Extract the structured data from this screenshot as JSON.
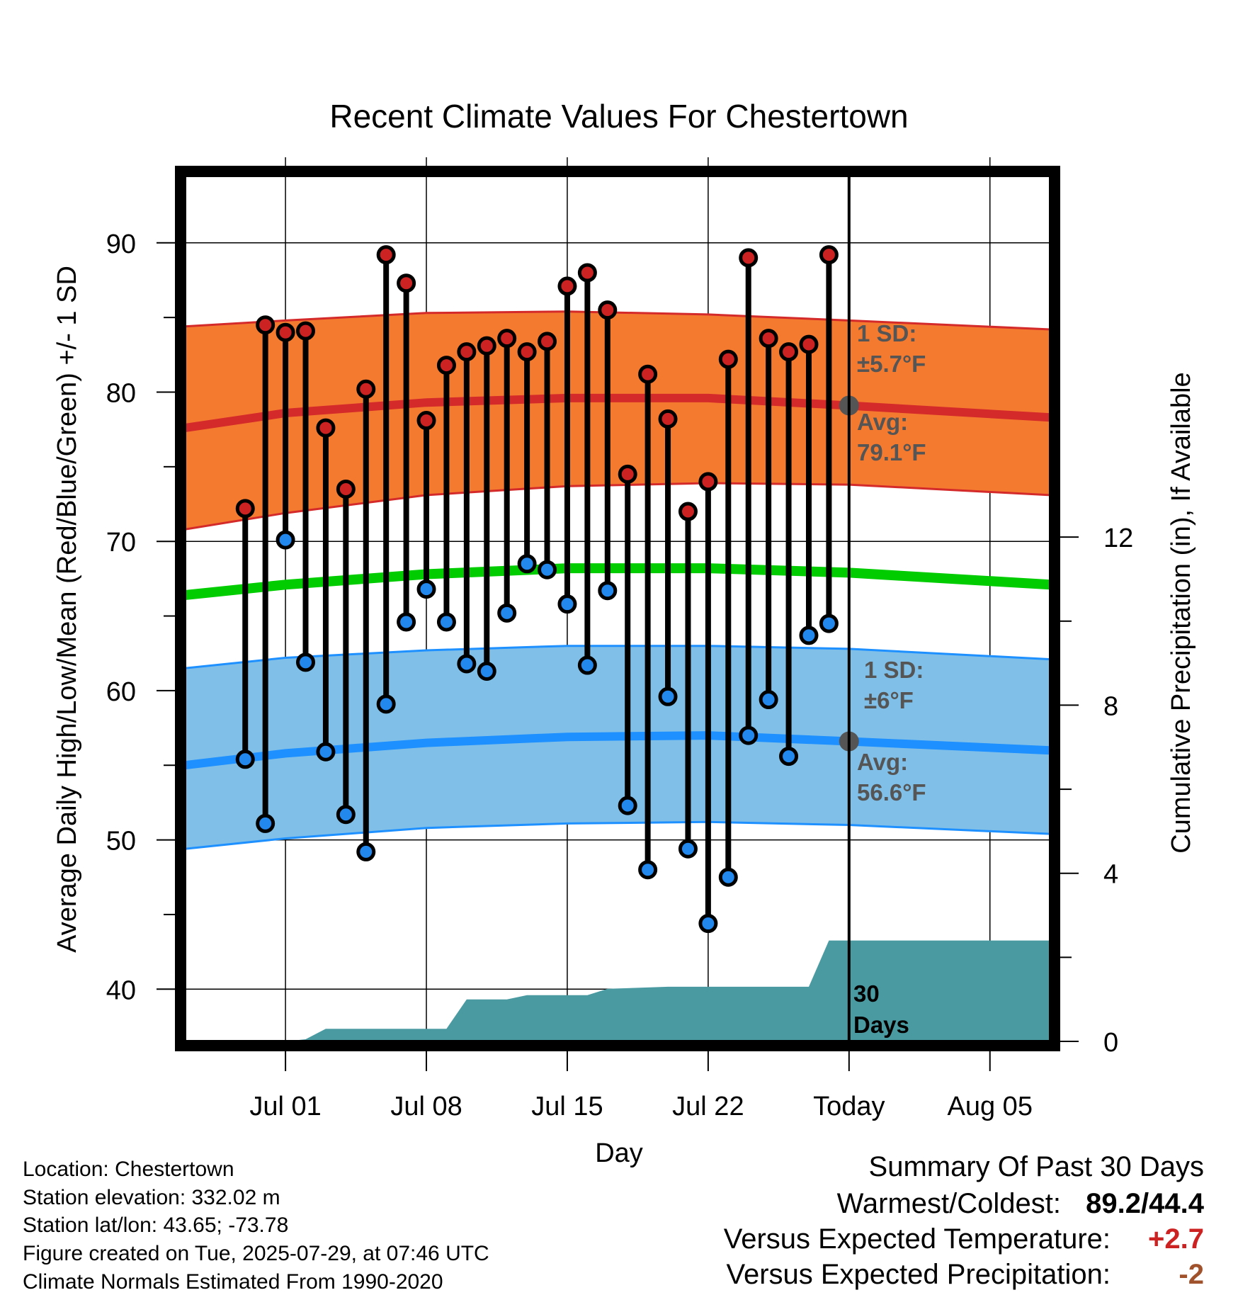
{
  "chart_data": {
    "type": "line",
    "title": "Recent Climate Values For Chestertown",
    "xlabel": "Day",
    "ylabel": "Average Daily High/Low/Mean (Red/Blue/Green) +/- 1 SD",
    "y2label": "Cumulative Precipitation (in), If Available",
    "ylim": [
      36.5,
      94.5
    ],
    "y2lim": [
      0,
      20.6
    ],
    "xlim": [
      "2025-06-26",
      "2025-08-08"
    ],
    "xticks": [
      {
        "date": "2025-07-01",
        "label": "Jul 01"
      },
      {
        "date": "2025-07-08",
        "label": "Jul 08"
      },
      {
        "date": "2025-07-15",
        "label": "Jul 15"
      },
      {
        "date": "2025-07-22",
        "label": "Jul 22"
      },
      {
        "date": "2025-07-29",
        "label": "Today"
      },
      {
        "date": "2025-08-05",
        "label": "Aug 05"
      }
    ],
    "yticks": [
      40,
      50,
      60,
      70,
      80,
      90
    ],
    "y2ticks": [
      0,
      4,
      8,
      12
    ],
    "grid": true,
    "today": "2025-07-29",
    "colors": {
      "high_band": "#f47a30",
      "high_line": "#d42a2a",
      "low_band": "#80c0e8",
      "low_line": "#1e90ff",
      "mean_line": "#00cc00",
      "precip": "#4a9aa2",
      "high_point": "#cc2222",
      "low_point": "#2288ee",
      "today_marker": "#555555",
      "warm_value": "#cc2222",
      "precip_value": "#a0522d"
    },
    "normal_high": {
      "x": [
        "2025-06-26",
        "2025-07-01",
        "2025-07-08",
        "2025-07-15",
        "2025-07-22",
        "2025-07-29",
        "2025-08-08"
      ],
      "values": [
        77.6,
        78.6,
        79.3,
        79.6,
        79.6,
        79.1,
        78.3
      ],
      "sd_upper": [
        84.4,
        84.8,
        85.3,
        85.4,
        85.2,
        84.8,
        84.2
      ],
      "sd_lower": [
        70.8,
        71.9,
        73.1,
        73.7,
        73.9,
        73.8,
        73.1
      ]
    },
    "normal_low": {
      "x": [
        "2025-06-26",
        "2025-07-01",
        "2025-07-08",
        "2025-07-15",
        "2025-07-22",
        "2025-07-29",
        "2025-08-08"
      ],
      "values": [
        55.0,
        55.8,
        56.5,
        56.9,
        57.0,
        56.6,
        56.0
      ],
      "sd_upper": [
        61.5,
        62.2,
        62.7,
        63.0,
        63.0,
        62.8,
        62.1
      ],
      "sd_lower": [
        49.4,
        50.1,
        50.8,
        51.1,
        51.2,
        51.0,
        50.4
      ]
    },
    "normal_mean": {
      "x": [
        "2025-06-26",
        "2025-07-01",
        "2025-07-08",
        "2025-07-15",
        "2025-07-22",
        "2025-07-29",
        "2025-08-08"
      ],
      "values": [
        66.4,
        67.1,
        67.8,
        68.2,
        68.2,
        67.9,
        67.1
      ]
    },
    "observed": [
      {
        "date": "2025-06-29",
        "high": 72.2,
        "low": 55.4
      },
      {
        "date": "2025-06-30",
        "high": 84.5,
        "low": 51.1
      },
      {
        "date": "2025-07-01",
        "high": 84.0,
        "low": 70.1
      },
      {
        "date": "2025-07-02",
        "high": 84.1,
        "low": 61.9
      },
      {
        "date": "2025-07-03",
        "high": 77.6,
        "low": 55.9
      },
      {
        "date": "2025-07-04",
        "high": 73.5,
        "low": 51.7
      },
      {
        "date": "2025-07-05",
        "high": 80.2,
        "low": 49.2
      },
      {
        "date": "2025-07-06",
        "high": 89.2,
        "low": 59.1
      },
      {
        "date": "2025-07-07",
        "high": 87.3,
        "low": 64.6
      },
      {
        "date": "2025-07-08",
        "high": 78.1,
        "low": 66.8
      },
      {
        "date": "2025-07-09",
        "high": 81.8,
        "low": 64.6
      },
      {
        "date": "2025-07-10",
        "high": 82.7,
        "low": 61.8
      },
      {
        "date": "2025-07-11",
        "high": 83.1,
        "low": 61.3
      },
      {
        "date": "2025-07-12",
        "high": 83.6,
        "low": 65.2
      },
      {
        "date": "2025-07-13",
        "high": 82.7,
        "low": 68.5
      },
      {
        "date": "2025-07-14",
        "high": 83.4,
        "low": 68.1
      },
      {
        "date": "2025-07-15",
        "high": 87.1,
        "low": 65.8
      },
      {
        "date": "2025-07-16",
        "high": 88.0,
        "low": 61.7
      },
      {
        "date": "2025-07-17",
        "high": 85.5,
        "low": 66.7
      },
      {
        "date": "2025-07-18",
        "high": 74.5,
        "low": 52.3
      },
      {
        "date": "2025-07-19",
        "high": 81.2,
        "low": 48.0
      },
      {
        "date": "2025-07-20",
        "high": 78.2,
        "low": 59.6
      },
      {
        "date": "2025-07-21",
        "high": 72.0,
        "low": 49.4
      },
      {
        "date": "2025-07-22",
        "high": 74.0,
        "low": 44.4
      },
      {
        "date": "2025-07-23",
        "high": 82.2,
        "low": 47.5
      },
      {
        "date": "2025-07-24",
        "high": 89.0,
        "low": 57.0
      },
      {
        "date": "2025-07-25",
        "high": 83.6,
        "low": 59.4
      },
      {
        "date": "2025-07-26",
        "high": 82.7,
        "low": 55.6
      },
      {
        "date": "2025-07-27",
        "high": 83.2,
        "low": 63.7
      },
      {
        "date": "2025-07-28",
        "high": 89.2,
        "low": 64.5
      }
    ],
    "precip_cumulative": {
      "x": [
        "2025-06-26",
        "2025-07-01",
        "2025-07-02",
        "2025-07-03",
        "2025-07-08",
        "2025-07-09",
        "2025-07-10",
        "2025-07-12",
        "2025-07-13",
        "2025-07-16",
        "2025-07-17",
        "2025-07-20",
        "2025-07-27",
        "2025-07-28",
        "2025-08-08"
      ],
      "values": [
        0,
        0,
        0.05,
        0.3,
        0.3,
        0.3,
        1.0,
        1.0,
        1.1,
        1.1,
        1.25,
        1.3,
        1.3,
        2.4,
        2.4
      ]
    }
  },
  "annotations": {
    "high_sd_line1": "1 SD:",
    "high_sd_line2": "±5.7°F",
    "high_avg_line1": "Avg:",
    "high_avg_line2": "79.1°F",
    "low_sd_line1": "1 SD:",
    "low_sd_line2": "±6°F",
    "low_avg_line1": "Avg:",
    "low_avg_line2": "56.6°F",
    "days_line1": "30",
    "days_line2": "Days"
  },
  "footer": {
    "location": "Location: Chestertown",
    "elevation": "Station elevation: 332.02 m",
    "latlon": "Station lat/lon: 43.65; -73.78",
    "created": "Figure created on Tue, 2025-07-29, at 07:46 UTC",
    "normals": "Climate Normals Estimated From 1990-2020"
  },
  "summary": {
    "heading": "Summary Of Past 30 Days",
    "warm_cold_label": "Warmest/Coldest:",
    "warm_cold_value": "89.2/44.4",
    "temp_label": "Versus Expected Temperature:",
    "temp_value": "+2.7",
    "precip_label": "Versus Expected Precipitation:",
    "precip_value": "-2"
  }
}
